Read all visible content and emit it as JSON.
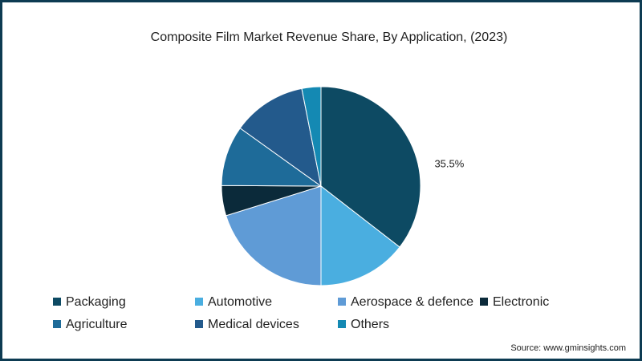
{
  "chart_data": {
    "type": "pie",
    "title": "Composite Film Market Revenue Share, By Application, (2023)",
    "categories": [
      "Packaging",
      "Automotive",
      "Aerospace & defence",
      "Electronic",
      "Agriculture",
      "Medical devices",
      "Others"
    ],
    "values": [
      35.5,
      14.5,
      20.2,
      4.9,
      9.8,
      12.0,
      3.1
    ],
    "value_labels": [
      "35.5%",
      null,
      null,
      null,
      null,
      null,
      null
    ],
    "colors": [
      "#0d4a63",
      "#4aaee0",
      "#5f9bd6",
      "#0b2a3a",
      "#1e6b99",
      "#235a8c",
      "#1489b3"
    ],
    "source": "Source: www.gminsights.com"
  }
}
